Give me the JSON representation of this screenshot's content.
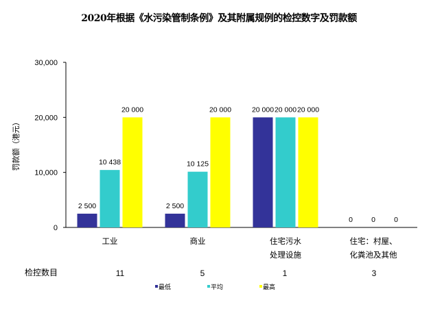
{
  "chart_data": {
    "type": "bar",
    "title": "2020年根据《水污染管制条例》及其附属规例的检控数字及罚款额",
    "ylabel": "罚款额（港元）",
    "xlabel": "",
    "ylim": [
      0,
      30000
    ],
    "yticks": [
      0,
      10000,
      20000,
      30000
    ],
    "ytick_labels": [
      "0",
      "10,000",
      "20,000",
      "30,000"
    ],
    "grid": false,
    "legend_position": "bottom",
    "categories": [
      [
        "工业"
      ],
      [
        "商业"
      ],
      [
        "住宅污水",
        "处理设施"
      ],
      [
        "住宅：村屋、",
        "化粪池及其他"
      ]
    ],
    "series": [
      {
        "name": "最低",
        "color": "#333399",
        "values": [
          2500,
          2500,
          20000,
          0
        ],
        "labels": [
          "2 500",
          "2 500",
          "20 000",
          "0"
        ]
      },
      {
        "name": "平均",
        "color": "#33CCCC",
        "values": [
          10438,
          10125,
          20000,
          0
        ],
        "labels": [
          "10 438",
          "10 125",
          "20 000",
          "0"
        ]
      },
      {
        "name": "最高",
        "color": "#FFFF00",
        "values": [
          20000,
          20000,
          20000,
          0
        ],
        "labels": [
          "20 000",
          "20 000",
          "20 000",
          "0"
        ]
      }
    ],
    "table": {
      "row_label": "检控数目",
      "values": [
        "11",
        "5",
        "1",
        "3"
      ]
    }
  }
}
